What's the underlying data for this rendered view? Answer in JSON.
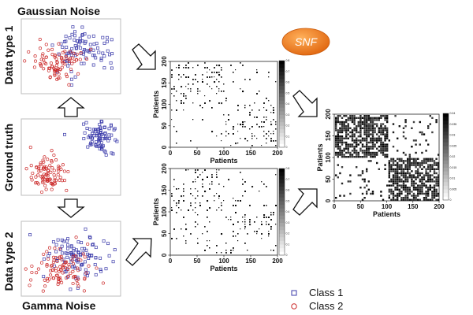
{
  "labels": {
    "gaussian_noise": "Gaussian Noise",
    "gamma_noise": "Gamma Noise",
    "data_type_1": "Data type 1",
    "ground_truth": "Ground truth",
    "data_type_2": "Data type 2",
    "snf": "SNF"
  },
  "legend": [
    {
      "label": "Class 1",
      "color": "#3a3aaa",
      "marker": "square"
    },
    {
      "label": "Class 2",
      "color": "#cc2b2b",
      "marker": "circle"
    }
  ],
  "colors": {
    "class1": "#3a3aaa",
    "class2": "#cc2b2b",
    "snf_badge": "#f07d1c"
  },
  "matrices": [
    {
      "id": "data-type-1-similarity",
      "xlabel": "Patients",
      "ylabel": "Patients",
      "xticks": [
        "0",
        "50",
        "100",
        "150",
        "200"
      ],
      "yticks": [
        "0",
        "50",
        "100",
        "150",
        "200"
      ],
      "colorbar_ticks": [
        "0",
        "0.1",
        "0.2",
        "0.3",
        "0.4",
        "0.5",
        "0.6",
        "0.7",
        "0.8"
      ]
    },
    {
      "id": "data-type-2-similarity",
      "xlabel": "Patients",
      "ylabel": "Patients",
      "xticks": [
        "0",
        "50",
        "100",
        "150",
        "200"
      ],
      "yticks": [
        "0",
        "50",
        "100",
        "150",
        "200"
      ],
      "colorbar_ticks": [
        "0",
        "0.1",
        "0.2",
        "0.3",
        "0.4",
        "0.5",
        "0.6",
        "0.7",
        "0.8"
      ]
    },
    {
      "id": "fused-similarity",
      "xlabel": "Patients",
      "ylabel": "Patients",
      "xticks": [
        "0",
        "50",
        "100",
        "150",
        "200"
      ],
      "yticks": [
        "0",
        "50",
        "100",
        "150",
        "200"
      ],
      "colorbar_ticks": [
        "0",
        "0.005",
        "0.01",
        "0.015",
        "0.02",
        "0.025",
        "0.03",
        "0.035",
        "0.04"
      ]
    }
  ]
}
